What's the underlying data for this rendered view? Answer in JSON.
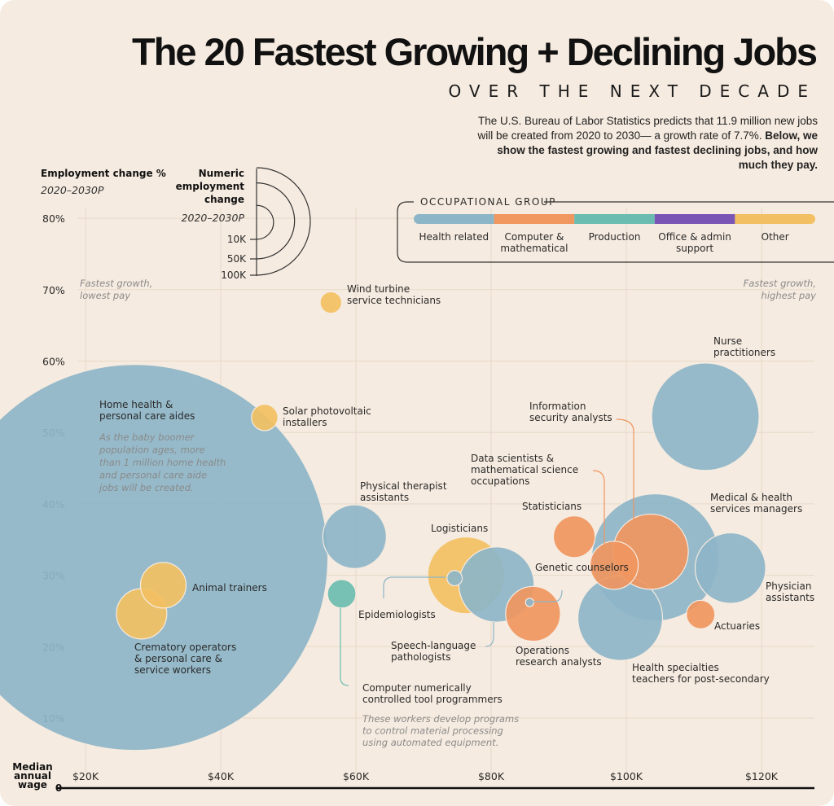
{
  "header": {
    "title": "The 20 Fastest Growing + Declining Jobs",
    "subtitle": "OVER THE NEXT DECADE",
    "intro_plain": "The U.S. Bureau of Labor Statistics predicts that 11.9 million new jobs will be created from 2020 to 2030— a growth rate of 7.7%.",
    "intro_bold": "Below, we show the fastest growing and fastest declining jobs, and how much they pay."
  },
  "legend": {
    "y_title": "Employment change %",
    "y_subtitle": "2020–2030P",
    "size_title_lines": [
      "Numeric",
      "employment",
      "change"
    ],
    "size_subtitle": "2020–2030P",
    "size_values": [
      {
        "label": "10K",
        "value": 10
      },
      {
        "label": "50K",
        "value": 50
      },
      {
        "label": "100K",
        "value": 100
      }
    ],
    "group_title": "OCCUPATIONAL GROUP",
    "groups": [
      {
        "key": "health",
        "label": [
          "Health related"
        ],
        "color": "#8db5c8"
      },
      {
        "key": "computer",
        "label": [
          "Computer &",
          "mathematical"
        ],
        "color": "#f0965f"
      },
      {
        "key": "production",
        "label": [
          "Production"
        ],
        "color": "#6bbcb0"
      },
      {
        "key": "office",
        "label": [
          "Office & admin",
          "support"
        ],
        "color": "#7a55b6"
      },
      {
        "key": "other",
        "label": [
          "Other"
        ],
        "color": "#f2c062"
      }
    ]
  },
  "chart_data": {
    "type": "scatter",
    "title": "The 20 Fastest Growing + Declining Jobs",
    "xlabel": "Median annual wage",
    "ylabel": "Employment change % 2020–2030P",
    "xlim": [
      0,
      130000
    ],
    "ylim": [
      0,
      80
    ],
    "x_ticks": [
      {
        "value": 20000,
        "label": "$20K"
      },
      {
        "value": 40000,
        "label": "$40K"
      },
      {
        "value": 60000,
        "label": "$60K"
      },
      {
        "value": 80000,
        "label": "$80K"
      },
      {
        "value": 100000,
        "label": "$100K"
      },
      {
        "value": 120000,
        "label": "$120K"
      }
    ],
    "x_zero_label": "0",
    "y_ticks": [
      {
        "value": 10,
        "label": "10%"
      },
      {
        "value": 20,
        "label": "20%"
      },
      {
        "value": 30,
        "label": "30%"
      },
      {
        "value": 40,
        "label": "40%"
      },
      {
        "value": 50,
        "label": "50%"
      },
      {
        "value": 60,
        "label": "60%"
      },
      {
        "value": 70,
        "label": "70%"
      },
      {
        "value": 80,
        "label": "80%"
      }
    ],
    "grid": true,
    "corner_notes": {
      "top_left": [
        "Fastest growth,",
        "lowest pay"
      ],
      "top_right": [
        "Fastest growth,",
        "highest pay"
      ]
    },
    "size_unit": "thousand jobs",
    "points": [
      {
        "name": [
          "Home health &",
          "personal care aides"
        ],
        "group": "health",
        "wage": 27300,
        "pct": 32.5,
        "jobs_k": 1290,
        "note": [
          "As the baby boomer",
          "population ages, more",
          "than 1 million home health",
          "and personal care aide",
          "jobs will be created."
        ]
      },
      {
        "name": [
          "Wind turbine",
          "service technicians"
        ],
        "group": "other",
        "wage": 56300,
        "pct": 68.2,
        "jobs_k": 4
      },
      {
        "name": [
          "Solar photovoltaic",
          "installers"
        ],
        "group": "other",
        "wage": 46500,
        "pct": 52.1,
        "jobs_k": 6
      },
      {
        "name": [
          "Animal trainers"
        ],
        "group": "other",
        "wage": 31500,
        "pct": 28.6,
        "jobs_k": 18
      },
      {
        "name": [
          "Crematory operators",
          "& personal care &",
          "service workers"
        ],
        "group": "other",
        "wage": 28300,
        "pct": 24.6,
        "jobs_k": 22
      },
      {
        "name": [
          "Physical therapist",
          "assistants"
        ],
        "group": "health",
        "wage": 59800,
        "pct": 35.4,
        "jobs_k": 35
      },
      {
        "name": [
          "Computer numerically",
          "controlled tool programmers"
        ],
        "group": "production",
        "wage": 57900,
        "pct": 27.4,
        "jobs_k": 7,
        "note": [
          "These workers develop programs",
          "to control material processing",
          "using automated equipment."
        ]
      },
      {
        "name": [
          "Logisticians"
        ],
        "group": "other",
        "wage": 76300,
        "pct": 30.0,
        "jobs_k": 51
      },
      {
        "name": [
          "Speech-language",
          "pathologists"
        ],
        "group": "health",
        "wage": 80800,
        "pct": 28.7,
        "jobs_k": 49
      },
      {
        "name": [
          "Epidemiologists"
        ],
        "group": "health",
        "wage": 74600,
        "pct": 29.6,
        "jobs_k": 2
      },
      {
        "name": [
          "Genetic counselors"
        ],
        "group": "health",
        "wage": 85700,
        "pct": 26.2,
        "jobs_k": 0.6
      },
      {
        "name": [
          "Operations",
          "research analysts"
        ],
        "group": "computer",
        "wage": 86200,
        "pct": 24.6,
        "jobs_k": 26
      },
      {
        "name": [
          "Statisticians"
        ],
        "group": "computer",
        "wage": 92300,
        "pct": 35.4,
        "jobs_k": 15
      },
      {
        "name": [
          "Nurse",
          "practitioners"
        ],
        "group": "health",
        "wage": 111700,
        "pct": 52.2,
        "jobs_k": 100
      },
      {
        "name": [
          "Medical & health",
          "services managers"
        ],
        "group": "health",
        "wage": 104300,
        "pct": 32.5,
        "jobs_k": 140
      },
      {
        "name": [
          "Information",
          "security analysts"
        ],
        "group": "computer",
        "wage": 103600,
        "pct": 33.3,
        "jobs_k": 49
      },
      {
        "name": [
          "Data scientists &",
          "mathematical science",
          "occupations"
        ],
        "group": "computer",
        "wage": 98200,
        "pct": 31.4,
        "jobs_k": 20
      },
      {
        "name": [
          "Physician",
          "assistants"
        ],
        "group": "health",
        "wage": 115400,
        "pct": 31.0,
        "jobs_k": 43
      },
      {
        "name": [
          "Actuaries"
        ],
        "group": "computer",
        "wage": 111000,
        "pct": 24.5,
        "jobs_k": 7
      },
      {
        "name": [
          "Health specialties",
          "teachers for post-secondary"
        ],
        "group": "health",
        "wage": 99100,
        "pct": 24.0,
        "jobs_k": 62
      }
    ]
  }
}
